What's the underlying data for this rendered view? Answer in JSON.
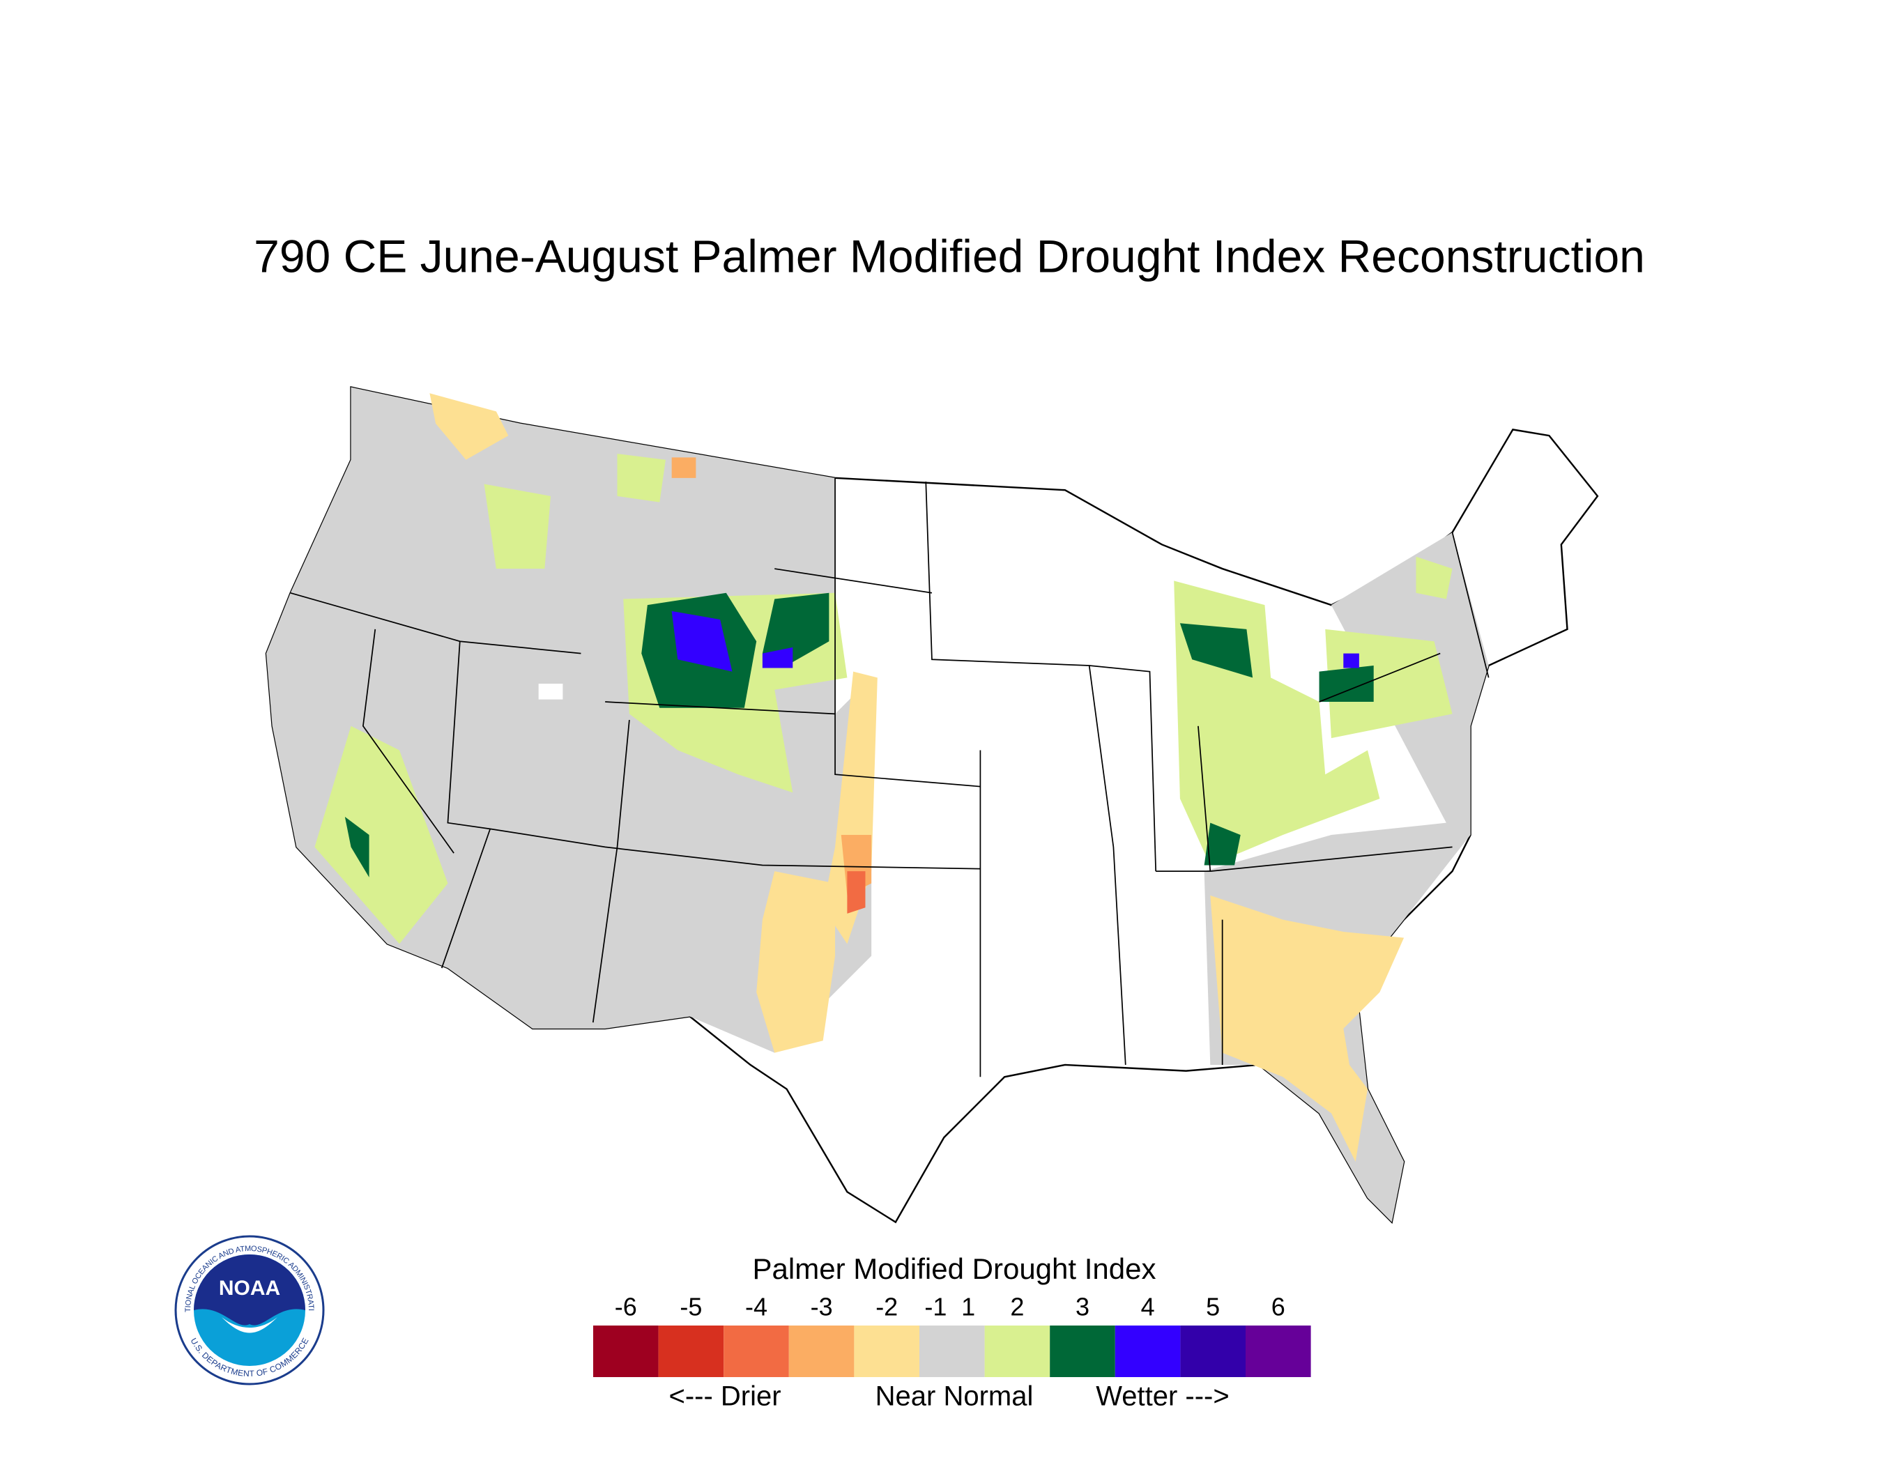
{
  "title": "790 CE  June-August  Palmer Modified Drought Index Reconstruction",
  "legend": {
    "title": "Palmer Modified Drought Index",
    "ticks": [
      -6,
      -5,
      -4,
      -3,
      -2,
      -1,
      1,
      2,
      3,
      4,
      5,
      6
    ],
    "colors": [
      "#9e0020",
      "#d7301f",
      "#f26b43",
      "#fbad63",
      "#fde092",
      "#d3d3d3",
      "#d9f090",
      "#006837",
      "#3300ff",
      "#3300aa",
      "#660099"
    ],
    "captions": [
      "<--- Drier",
      "Near Normal",
      "Wetter --->"
    ]
  },
  "logo": {
    "text": "NOAA",
    "ring_top": "NATIONAL OCEANIC AND ATMOSPHERIC ADMINISTRATION",
    "ring_bottom": "U.S. DEPARTMENT OF COMMERCE"
  }
}
